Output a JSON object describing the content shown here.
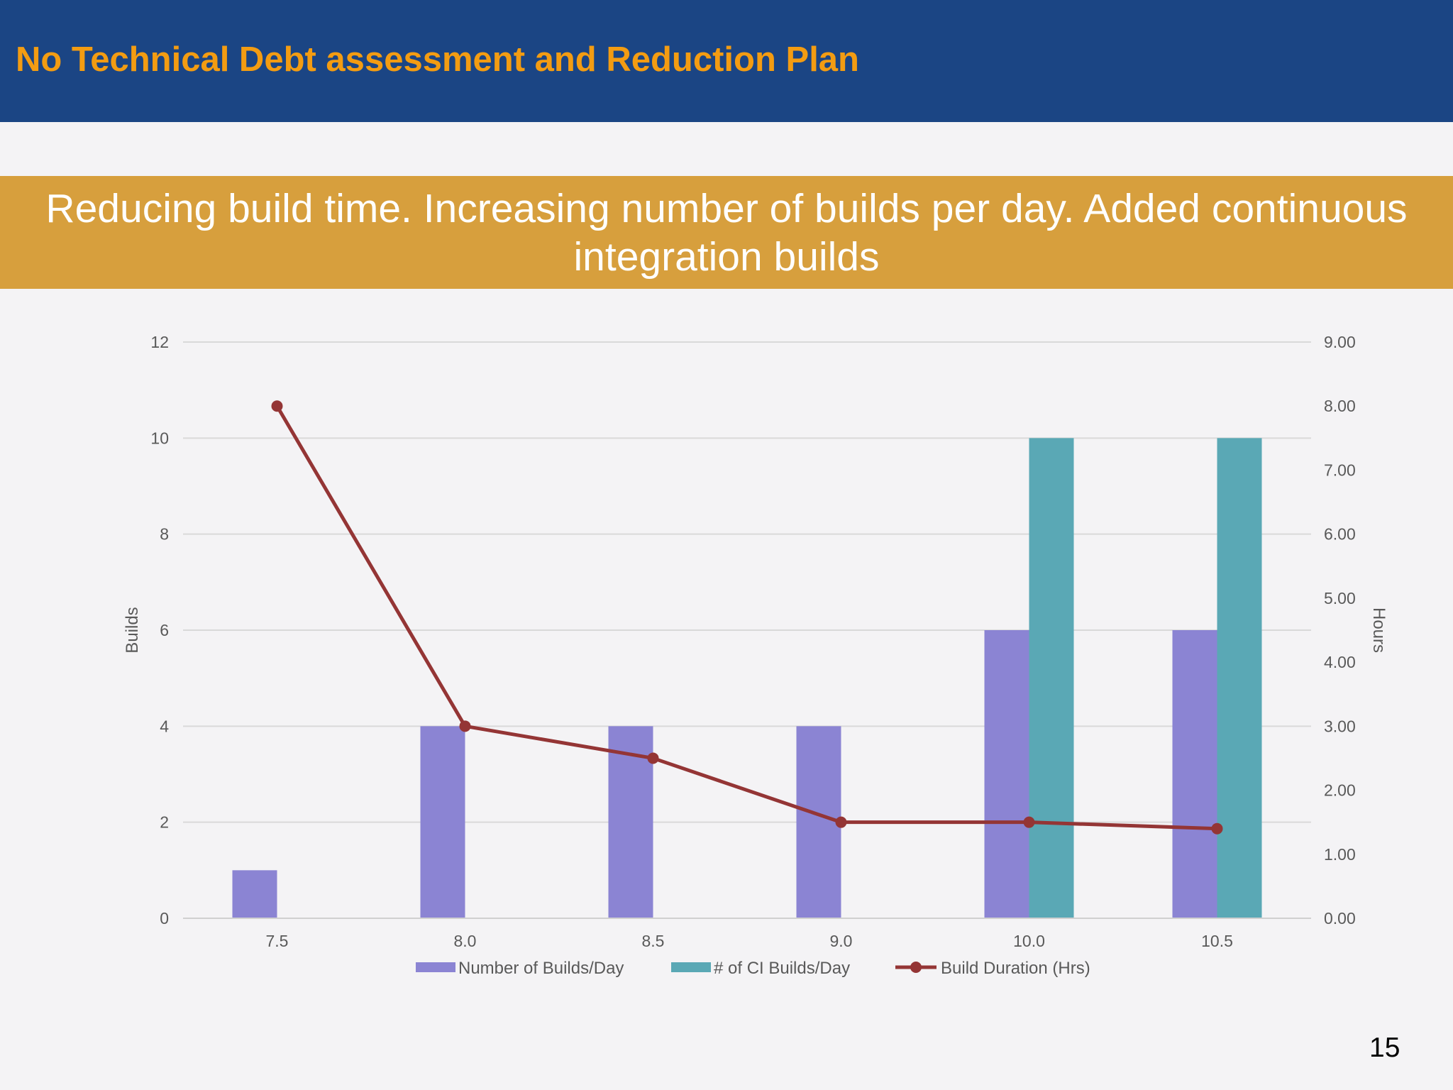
{
  "header": {
    "title": "No Technical Debt assessment and Reduction Plan"
  },
  "banner": {
    "text": "Reducing build time.  Increasing number of builds per day.  Added continuous integration builds"
  },
  "page": {
    "number": "15"
  },
  "colors": {
    "header_bg": "#1b4584",
    "header_title": "#f39c12",
    "banner_bg": "#d79f3d",
    "builds_bar": "#8b84d3",
    "ci_bar": "#5aa8b5",
    "duration_line": "#943535"
  },
  "chart_data": {
    "type": "bar",
    "categories": [
      "7.5",
      "8.0",
      "8.5",
      "9.0",
      "10.0",
      "10.5"
    ],
    "series": [
      {
        "name": "Number of Builds/Day",
        "type": "bar",
        "axis": "left",
        "values": [
          1,
          4,
          4,
          4,
          6,
          6
        ]
      },
      {
        "name": "# of CI Builds/Day",
        "type": "bar",
        "axis": "left",
        "values": [
          0,
          0,
          0,
          0,
          10,
          10
        ]
      },
      {
        "name": "Build Duration (Hrs)",
        "type": "line",
        "axis": "right",
        "values": [
          8.0,
          3.0,
          2.5,
          1.5,
          1.5,
          1.4
        ]
      }
    ],
    "ylabel": "Builds",
    "y2label": "Hours",
    "ylim": [
      0,
      12
    ],
    "y2lim": [
      0,
      9
    ],
    "yticks": [
      "0",
      "2",
      "4",
      "6",
      "8",
      "10",
      "12"
    ],
    "y2ticks": [
      "0.00",
      "1.00",
      "2.00",
      "3.00",
      "4.00",
      "5.00",
      "6.00",
      "7.00",
      "8.00",
      "9.00"
    ],
    "grid": true,
    "legend": "bottom"
  }
}
